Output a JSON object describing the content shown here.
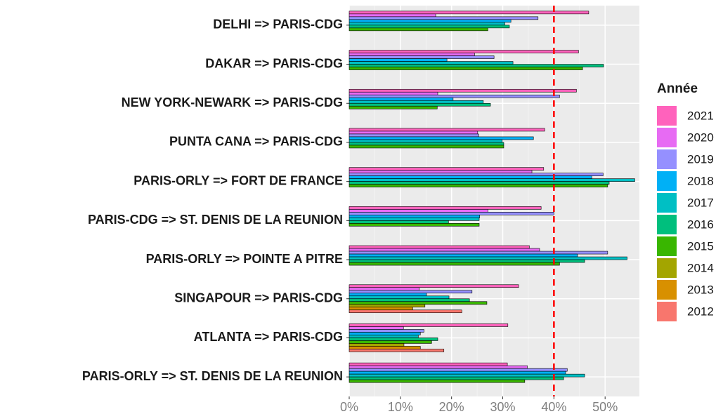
{
  "chart_data": {
    "type": "bar",
    "orientation": "horizontal",
    "categories": [
      "DELHI => PARIS-CDG",
      "DAKAR => PARIS-CDG",
      "NEW YORK-NEWARK => PARIS-CDG",
      "PUNTA CANA => PARIS-CDG",
      "PARIS-ORLY => FORT DE FRANCE",
      "PARIS-CDG => ST. DENIS DE LA REUNION",
      "PARIS-ORLY => POINTE A PITRE",
      "SINGAPOUR => PARIS-CDG",
      "ATLANTA => PARIS-CDG",
      "PARIS-ORLY => ST. DENIS DE LA REUNION"
    ],
    "series": [
      {
        "name": "2021",
        "color": "#FF62BC",
        "values": [
          46.8,
          44.8,
          44.4,
          38.2,
          38.0,
          37.5,
          35.2,
          33.1,
          31.0,
          30.9
        ]
      },
      {
        "name": "2020",
        "color": "#E76BF3",
        "values": [
          16.9,
          24.5,
          17.3,
          25.1,
          35.7,
          27.1,
          37.2,
          13.7,
          10.6,
          34.8
        ]
      },
      {
        "name": "2019",
        "color": "#9590FF",
        "values": [
          36.9,
          28.3,
          41.1,
          25.3,
          49.6,
          40.0,
          50.5,
          24.0,
          14.6,
          42.6
        ]
      },
      {
        "name": "2018",
        "color": "#00B0F6",
        "values": [
          31.6,
          19.1,
          20.3,
          36.0,
          47.4,
          25.5,
          44.6,
          15.1,
          13.9,
          42.3
        ]
      },
      {
        "name": "2017",
        "color": "#00BFC4",
        "values": [
          30.4,
          32.0,
          26.2,
          29.9,
          55.8,
          25.4,
          54.3,
          19.5,
          13.5,
          46.0
        ]
      },
      {
        "name": "2016",
        "color": "#00BF7D",
        "values": [
          31.3,
          49.7,
          27.6,
          30.2,
          50.8,
          19.4,
          46.0,
          23.5,
          17.3,
          41.9
        ]
      },
      {
        "name": "2015",
        "color": "#39B600",
        "values": [
          27.1,
          45.6,
          17.2,
          30.2,
          50.5,
          25.4,
          41.1,
          26.9,
          16.1,
          34.3
        ]
      },
      {
        "name": "2014",
        "color": "#A3A500",
        "values": [
          null,
          null,
          null,
          null,
          null,
          null,
          null,
          14.8,
          10.7,
          null
        ]
      },
      {
        "name": "2013",
        "color": "#D89000",
        "values": [
          null,
          null,
          null,
          null,
          null,
          null,
          null,
          12.4,
          13.9,
          null
        ]
      },
      {
        "name": "2012",
        "color": "#F8766D",
        "values": [
          null,
          null,
          null,
          null,
          null,
          null,
          null,
          22.0,
          18.5,
          null
        ]
      }
    ],
    "xlim": [
      0,
      56.7
    ],
    "xticks": [
      {
        "value": 0,
        "label": "0%"
      },
      {
        "value": 10,
        "label": "10%"
      },
      {
        "value": 20,
        "label": "20%"
      },
      {
        "value": 30,
        "label": "30%"
      },
      {
        "value": 40,
        "label": "40%"
      },
      {
        "value": 50,
        "label": "50%"
      }
    ],
    "reference_line": {
      "value": 40,
      "color": "#ff0000"
    },
    "legend_title": "Année",
    "legend_position": "right",
    "grid": true
  }
}
